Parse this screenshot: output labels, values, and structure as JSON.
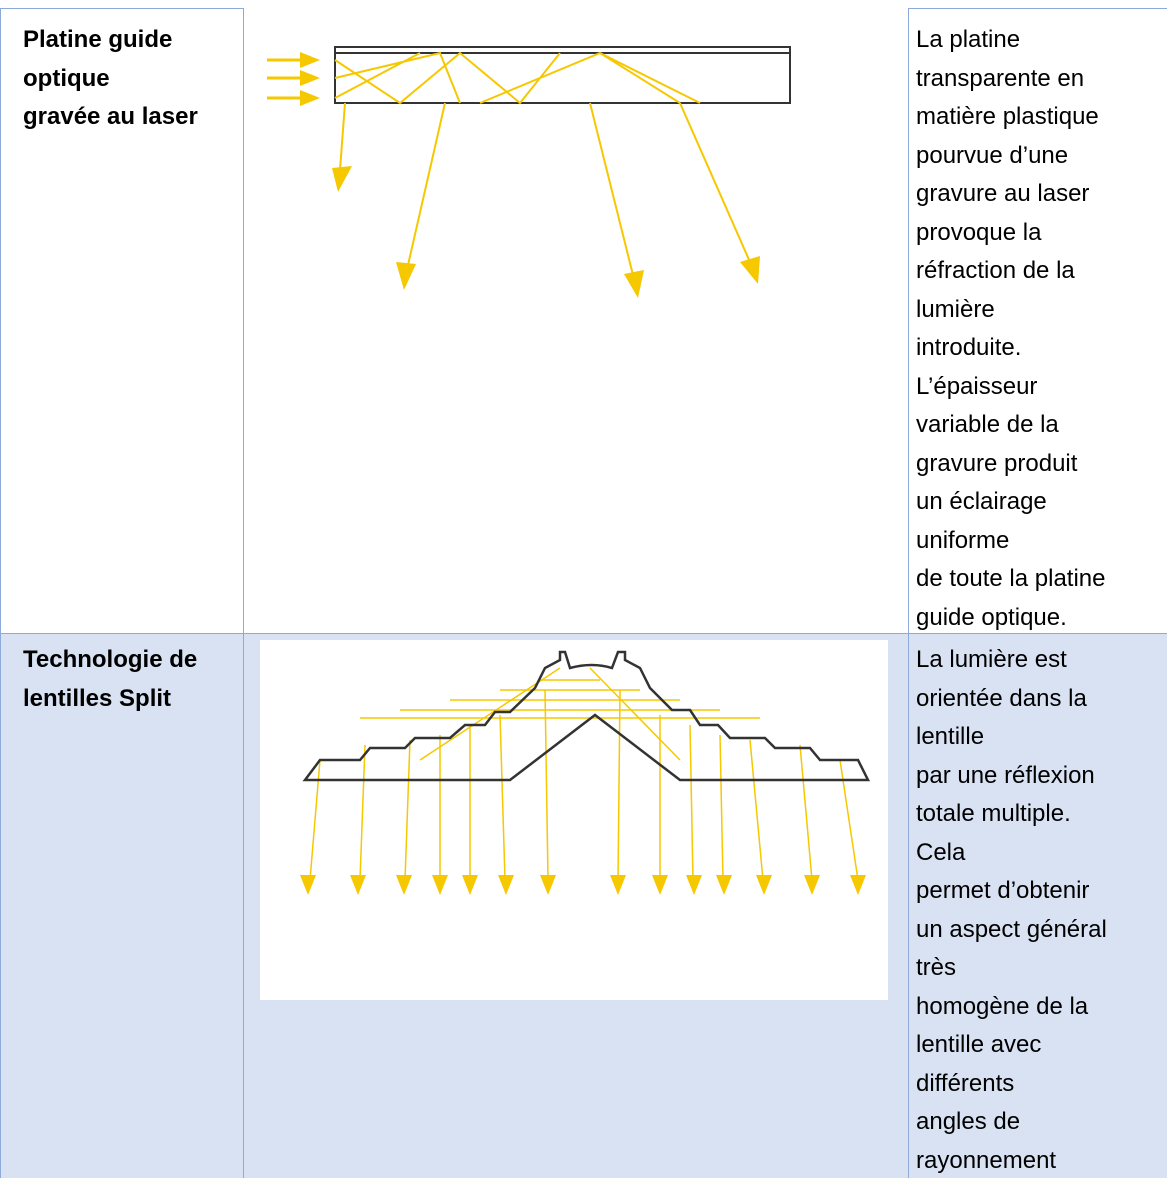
{
  "table": {
    "rows": [
      {
        "title": [
          "Platine guide",
          "optique",
          "gravée au laser"
        ],
        "description": [
          "La platine",
          "transparente en",
          "matière plastique",
          "pourvue d’une",
          "gravure au laser",
          "provoque la",
          "réfraction de la",
          "lumière",
          "introduite.",
          "L’épaisseur",
          "variable de la",
          "gravure produit",
          "un éclairage",
          "uniforme",
          "de toute la platine",
          "guide optique."
        ]
      },
      {
        "title": [
          "Technologie de",
          "lentilles Split"
        ],
        "description": [
          "La lumière est",
          "orientée dans la",
          "lentille",
          "par une réflexion",
          "totale multiple.",
          "Cela",
          "permet d’obtenir",
          "un aspect général",
          "très",
          "homogène de la",
          "lentille avec",
          "différents",
          "angles de",
          "rayonnement"
        ]
      }
    ]
  }
}
